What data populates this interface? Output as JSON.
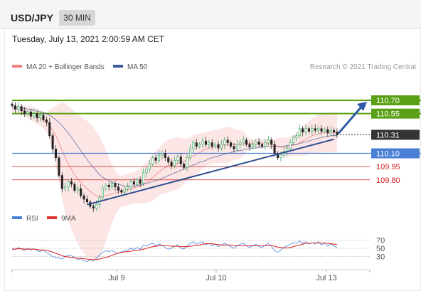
{
  "header": {
    "symbol": "USD/JPY",
    "interval": "30 MIN",
    "datetime": "Tuesday, July 13, 2021 2:00:59 AM CET"
  },
  "legend": {
    "bollinger_label": "MA 20 + Bollinger Bands",
    "ma50_label": "MA 50",
    "credit": "Research © 2021 Trading Central",
    "rsi_label": "RSI",
    "rsi_ma_label": "9MA"
  },
  "colors": {
    "bollinger": "#f08080",
    "ma50": "#3d5a99",
    "resistance": "#5aa017",
    "current": "#333333",
    "pivot": "#4a7fd6",
    "support": "#d02020",
    "rsi": "#4a7fd6",
    "rsi_ma": "#e03030",
    "bull": "#27a85a",
    "bear": "#222222"
  },
  "chart_data": [
    {
      "type": "candlestick",
      "title": "",
      "ylim": [
        109.5,
        110.95
      ],
      "x_ticks": [
        "Jul 9",
        "Jul 10",
        "Jul 13"
      ],
      "levels": [
        {
          "value": 110.7,
          "label": "110.70",
          "kind": "resistance"
        },
        {
          "value": 110.55,
          "label": "110.55",
          "kind": "resistance"
        },
        {
          "value": 110.31,
          "label": "110.31",
          "kind": "current"
        },
        {
          "value": 110.1,
          "label": "110.10",
          "kind": "pivot"
        },
        {
          "value": 109.95,
          "label": "109.95",
          "kind": "support"
        },
        {
          "value": 109.8,
          "label": "109.80",
          "kind": "support"
        }
      ],
      "close": [
        110.64,
        110.6,
        110.63,
        110.58,
        110.55,
        110.57,
        110.52,
        110.55,
        110.5,
        110.53,
        110.48,
        110.45,
        110.3,
        110.15,
        110.05,
        109.85,
        109.7,
        109.72,
        109.78,
        109.75,
        109.68,
        109.7,
        109.62,
        109.58,
        109.55,
        109.5,
        109.48,
        109.52,
        109.6,
        109.7,
        109.74,
        109.72,
        109.76,
        109.72,
        109.68,
        109.66,
        109.7,
        109.72,
        109.78,
        109.75,
        109.8,
        109.76,
        109.88,
        109.92,
        109.98,
        110.05,
        110.02,
        110.08,
        110.1,
        110.05,
        110.0,
        109.96,
        110.02,
        110.06,
        109.98,
        109.94,
        110.05,
        110.15,
        110.22,
        110.18,
        110.2,
        110.24,
        110.2,
        110.22,
        110.18,
        110.2,
        110.16,
        110.2,
        110.25,
        110.22,
        110.18,
        110.15,
        110.2,
        110.22,
        110.25,
        110.2,
        110.17,
        110.2,
        110.23,
        110.2,
        110.18,
        110.22,
        110.25,
        110.2,
        110.1,
        110.05,
        110.08,
        110.12,
        110.16,
        110.22,
        110.28,
        110.3,
        110.38,
        110.34,
        110.38,
        110.35,
        110.38,
        110.36,
        110.38,
        110.35,
        110.37,
        110.33,
        110.36,
        110.34,
        110.31
      ],
      "ma20": [
        110.6,
        110.61,
        110.6,
        110.59,
        110.58,
        110.57,
        110.55,
        110.54,
        110.52,
        110.5,
        110.48,
        110.45,
        110.42,
        110.36,
        110.3,
        110.22,
        110.13,
        110.05,
        109.98,
        109.92,
        109.86,
        109.81,
        109.77,
        109.73,
        109.7,
        109.67,
        109.64,
        109.62,
        109.61,
        109.61,
        109.62,
        109.63,
        109.64,
        109.65,
        109.66,
        109.67,
        109.68,
        109.69,
        109.7,
        109.71,
        109.72,
        109.73,
        109.75,
        109.77,
        109.8,
        109.83,
        109.86,
        109.89,
        109.92,
        109.94,
        109.96,
        109.97,
        109.98,
        109.99,
        110.0,
        110.01,
        110.03,
        110.05,
        110.07,
        110.09,
        110.11,
        110.13,
        110.15,
        110.16,
        110.17,
        110.18,
        110.18,
        110.19,
        110.19,
        110.2,
        110.2,
        110.2,
        110.2,
        110.2,
        110.21,
        110.21,
        110.21,
        110.21,
        110.21,
        110.21,
        110.21,
        110.21,
        110.21,
        110.2,
        110.19,
        110.18,
        110.17,
        110.17,
        110.17,
        110.18,
        110.19,
        110.2,
        110.22,
        110.24,
        110.26,
        110.28,
        110.3,
        110.31,
        110.32,
        110.33,
        110.34,
        110.34,
        110.34,
        110.34,
        110.33
      ],
      "ma50": [
        110.62,
        110.62,
        110.62,
        110.61,
        110.61,
        110.6,
        110.6,
        110.59,
        110.58,
        110.57,
        110.56,
        110.55,
        110.53,
        110.51,
        110.48,
        110.45,
        110.41,
        110.37,
        110.33,
        110.28,
        110.23,
        110.18,
        110.13,
        110.08,
        110.03,
        109.98,
        109.94,
        109.9,
        109.86,
        109.83,
        109.81,
        109.79,
        109.77,
        109.76,
        109.75,
        109.74,
        109.73,
        109.73,
        109.73,
        109.73,
        109.74,
        109.74,
        109.75,
        109.76,
        109.77,
        109.78,
        109.79,
        109.8,
        109.82,
        109.83,
        109.85,
        109.86,
        109.88,
        109.89,
        109.91,
        109.92,
        109.94,
        109.95,
        109.97,
        109.98,
        110.0,
        110.01,
        110.02,
        110.04,
        110.05,
        110.06,
        110.07,
        110.08,
        110.09,
        110.1,
        110.11,
        110.12,
        110.13,
        110.13,
        110.14,
        110.15,
        110.15,
        110.16,
        110.16,
        110.17,
        110.17,
        110.18,
        110.18,
        110.18,
        110.18,
        110.18,
        110.18,
        110.18,
        110.19,
        110.19,
        110.2,
        110.2,
        110.21,
        110.22,
        110.23,
        110.24,
        110.25,
        110.26,
        110.27,
        110.28,
        110.29,
        110.29,
        110.3,
        110.3,
        110.3
      ],
      "trendline": {
        "from_index": 26,
        "from_value": 109.52,
        "to_index": 103,
        "to_value": 110.26
      },
      "forecast": {
        "from_index": 104,
        "from_value": 110.31,
        "to_value": 110.7
      }
    },
    {
      "type": "line",
      "title": "",
      "ylim": [
        0,
        100
      ],
      "y_ticks": [
        70,
        50,
        30
      ],
      "series": [
        {
          "name": "RSI",
          "values": [
            50,
            47,
            52,
            48,
            45,
            50,
            46,
            49,
            44,
            42,
            46,
            40,
            35,
            30,
            28,
            26,
            24,
            30,
            34,
            32,
            28,
            22,
            25,
            20,
            18,
            22,
            20,
            26,
            34,
            40,
            44,
            42,
            45,
            40,
            38,
            42,
            44,
            46,
            50,
            47,
            52,
            48,
            58,
            55,
            60,
            62,
            56,
            60,
            58,
            52,
            48,
            50,
            55,
            58,
            50,
            48,
            56,
            62,
            66,
            60,
            64,
            66,
            58,
            62,
            56,
            60,
            54,
            58,
            62,
            58,
            54,
            50,
            56,
            60,
            62,
            56,
            52,
            56,
            60,
            55,
            52,
            58,
            62,
            55,
            44,
            40,
            46,
            52,
            56,
            60,
            64,
            62,
            68,
            62,
            66,
            60,
            64,
            60,
            66,
            58,
            64,
            55,
            60,
            56,
            52
          ]
        },
        {
          "name": "9MA",
          "values": [
            48,
            48,
            49,
            49,
            48,
            48,
            48,
            48,
            47,
            46,
            46,
            45,
            43,
            41,
            38,
            35,
            32,
            30,
            29,
            28,
            27,
            26,
            26,
            25,
            24,
            23,
            22,
            23,
            24,
            26,
            28,
            30,
            33,
            36,
            38,
            40,
            41,
            42,
            43,
            44,
            45,
            46,
            48,
            50,
            52,
            54,
            55,
            56,
            57,
            57,
            56,
            55,
            55,
            55,
            54,
            54,
            54,
            55,
            56,
            57,
            58,
            60,
            61,
            61,
            61,
            60,
            59,
            58,
            58,
            58,
            58,
            57,
            56,
            56,
            56,
            56,
            56,
            56,
            56,
            56,
            56,
            56,
            57,
            57,
            55,
            53,
            52,
            51,
            51,
            52,
            54,
            56,
            58,
            60,
            62,
            62,
            63,
            63,
            63,
            63,
            62,
            62,
            61,
            60,
            59
          ]
        }
      ]
    }
  ]
}
